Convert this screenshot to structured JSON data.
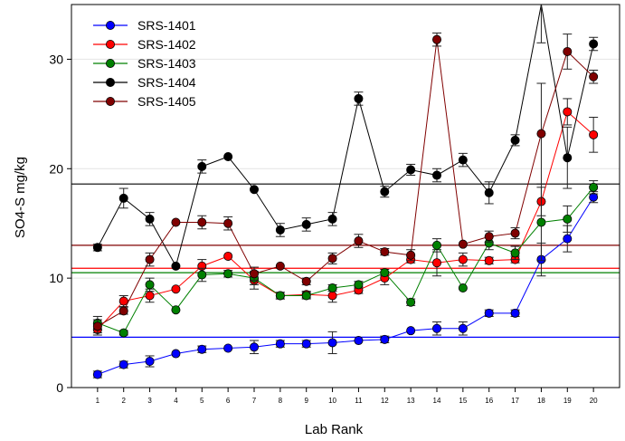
{
  "chart_data": {
    "type": "line",
    "xlabel": "Lab Rank",
    "ylabel": "SO4-S mg/kg",
    "x": [
      1,
      2,
      3,
      4,
      5,
      6,
      7,
      8,
      9,
      10,
      11,
      12,
      13,
      14,
      15,
      16,
      17,
      18,
      19,
      20
    ],
    "xlim": [
      0,
      21
    ],
    "ylim": [
      0,
      35
    ],
    "yticks": [
      0,
      10,
      20,
      30
    ],
    "grid": "horizontal",
    "legend_position": "top-left",
    "series": [
      {
        "name": "SRS-1401",
        "color": "#0000ff",
        "mean": 4.6,
        "values": [
          1.2,
          2.1,
          2.4,
          3.1,
          3.5,
          3.6,
          3.7,
          4.0,
          4.0,
          4.1,
          4.3,
          4.4,
          5.2,
          5.4,
          5.4,
          6.8,
          6.8,
          11.7,
          13.6,
          17.4
        ],
        "errors": [
          0.3,
          0.3,
          0.5,
          0,
          0.3,
          0,
          0.6,
          0.3,
          0.3,
          1.0,
          0,
          0.3,
          0,
          0.6,
          0.6,
          0.3,
          0.3,
          1.5,
          1.2,
          0.5
        ]
      },
      {
        "name": "SRS-1402",
        "color": "#ff0000",
        "mean": 10.9,
        "values": [
          5.3,
          7.9,
          8.4,
          9.0,
          11.1,
          12.0,
          9.8,
          8.4,
          8.5,
          8.4,
          8.9,
          10.0,
          11.7,
          11.4,
          11.7,
          11.6,
          11.7,
          17.0,
          25.2,
          23.1
        ],
        "errors": [
          0.5,
          0.5,
          0.6,
          0,
          0.6,
          0,
          0.8,
          0.3,
          0.3,
          0.6,
          0.3,
          0.6,
          0.3,
          1.2,
          0.6,
          0.3,
          0.3,
          1.3,
          1.2,
          1.6
        ]
      },
      {
        "name": "SRS-1403",
        "color": "#008000",
        "mean": 10.5,
        "values": [
          5.9,
          5.0,
          9.4,
          7.1,
          10.3,
          10.4,
          10.0,
          8.4,
          8.4,
          9.1,
          9.4,
          10.5,
          7.8,
          13.0,
          9.1,
          13.2,
          12.3,
          15.1,
          15.4,
          18.3
        ],
        "errors": [
          0.6,
          0.2,
          0.6,
          0,
          0.6,
          0.3,
          0.6,
          0.3,
          0.3,
          0.3,
          0.3,
          0.3,
          0.3,
          0.6,
          0,
          0.6,
          0.6,
          3.5,
          1.2,
          0.6
        ]
      },
      {
        "name": "SRS-1404",
        "color": "#000000",
        "mean": 18.6,
        "values": [
          12.8,
          17.3,
          15.4,
          11.1,
          20.2,
          21.1,
          18.1,
          14.4,
          14.9,
          15.4,
          26.4,
          17.9,
          19.9,
          19.4,
          20.8,
          17.8,
          22.6,
          35.5,
          21.0,
          31.4
        ],
        "errors": [
          0.3,
          0.9,
          0.6,
          0,
          0.6,
          0,
          0,
          0.6,
          0.6,
          0.6,
          0.6,
          0.5,
          0.5,
          0.6,
          0.6,
          1.0,
          0.5,
          4.0,
          2.8,
          0.6
        ]
      },
      {
        "name": "SRS-1405",
        "color": "#800000",
        "mean": 13.0,
        "values": [
          5.6,
          7.0,
          11.7,
          15.1,
          15.1,
          15.0,
          10.4,
          11.1,
          9.7,
          11.8,
          13.4,
          12.4,
          12.1,
          31.8,
          13.1,
          13.8,
          14.1,
          23.2,
          30.7,
          28.4
        ],
        "errors": [
          0.6,
          0.3,
          0.6,
          0,
          0.6,
          0.6,
          0.6,
          0,
          0.3,
          0.5,
          0.6,
          0.3,
          0.5,
          0.6,
          0,
          0.5,
          0.5,
          4.6,
          1.6,
          0.6
        ]
      }
    ]
  }
}
